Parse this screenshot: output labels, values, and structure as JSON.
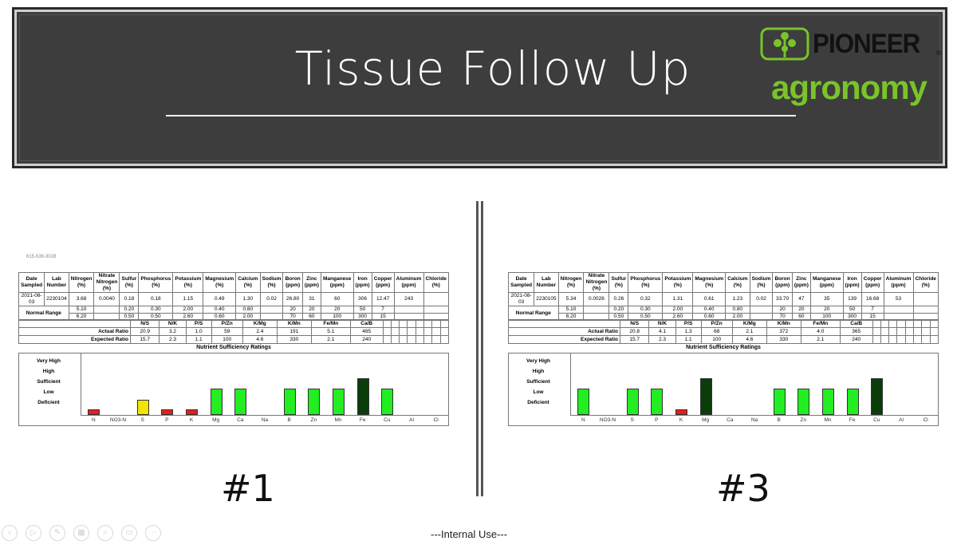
{
  "slide": {
    "title": "Tissue Follow Up",
    "footer": "---Internal Use---",
    "logo": {
      "brand": "PIONEER",
      "brand_mark": "®",
      "sub": "agronomy",
      "sub_color": "#79c42a"
    },
    "toolbar": [
      "prev-icon",
      "play-icon",
      "pen-icon",
      "slides-icon",
      "zoom-icon",
      "subtitles-icon",
      "more-icon"
    ]
  },
  "columns": [
    "Date Sampled",
    "Lab Number",
    "Nitrogen (%)",
    "Nitrate Nitrogen (%)",
    "Sulfur (%)",
    "Phosphorus (%)",
    "Potassium (%)",
    "Magnesium (%)",
    "Calcium (%)",
    "Sodium (%)",
    "Boron (ppm)",
    "Zinc (ppm)",
    "Manganese (ppm)",
    "Iron (ppm)",
    "Copper (ppm)",
    "Aluminum (ppm)",
    "Chloride (%)"
  ],
  "normal_range_label": "Normal Range",
  "normal_low": [
    "",
    "",
    "5.10",
    "",
    "0.20",
    "0.30",
    "2.00",
    "0.40",
    "0.80",
    "",
    "20",
    "20",
    "20",
    "50",
    "7",
    "",
    ""
  ],
  "normal_high": [
    "",
    "",
    "6.20",
    "",
    "0.50",
    "0.50",
    "2.60",
    "0.60",
    "2.00",
    "",
    "70",
    "60",
    "100",
    "300",
    "15",
    "",
    ""
  ],
  "ratio_headers": [
    "",
    "N/S",
    "N/K",
    "P/S",
    "P/Zn",
    "K/Mg",
    "K/Mn",
    "Fe/Mn",
    "Ca/B"
  ],
  "ratio_row_labels": [
    "Actual Ratio",
    "Expected Ratio"
  ],
  "expected_ratio": [
    "15.7",
    "2.3",
    "1.1",
    "100",
    "4.6",
    "330",
    "2.1",
    "240"
  ],
  "nsr_title": "Nutrient Sufficiency Ratings",
  "nsr_levels": [
    "Very High",
    "High",
    "Sufficient",
    "Low",
    "Deficient"
  ],
  "nsr_categories": [
    "N",
    "NO3-N",
    "S",
    "P",
    "K",
    "Mg",
    "Ca",
    "Na",
    "B",
    "Zn",
    "Mn",
    "Fe",
    "Cu",
    "Al",
    "Cl"
  ],
  "rating_colors": {
    "Deficient": "#e02020",
    "Low": "#f5e400",
    "Sufficient": "#22ee22",
    "High": "#22ee22",
    "Very High": "#0b3d0b"
  },
  "panels": [
    {
      "caption": "#1",
      "phone": "615-536-3028",
      "sample": [
        "2021-08-03",
        "2230104",
        "3.68",
        "0.0040",
        "0.18",
        "0.18",
        "1.15",
        "0.49",
        "1.30",
        "0.02",
        "26.80",
        "31",
        "60",
        "306",
        "12.47",
        "243",
        ""
      ],
      "actual_ratio": [
        "20.9",
        "3.2",
        "1.0",
        "59",
        "2.4",
        "191",
        "5.1",
        "485"
      ],
      "chart_data": {
        "type": "bar",
        "title": "Nutrient Sufficiency Ratings",
        "categories": [
          "N",
          "NO3-N",
          "S",
          "P",
          "K",
          "Mg",
          "Ca",
          "Na",
          "B",
          "Zn",
          "Mn",
          "Fe",
          "Cu",
          "Al",
          "Cl"
        ],
        "y_levels": [
          "Deficient",
          "Low",
          "Sufficient",
          "High",
          "Very High"
        ],
        "ratings": [
          "Deficient",
          null,
          "Low",
          "Deficient",
          "Deficient",
          "Sufficient",
          "Sufficient",
          null,
          "Sufficient",
          "Sufficient",
          "Sufficient",
          "Very High",
          "Sufficient",
          null,
          null
        ]
      }
    },
    {
      "caption": "#3",
      "phone": "",
      "sample": [
        "2021-08-03",
        "2230105",
        "5.34",
        "0.0026",
        "0.26",
        "0.32",
        "1.31",
        "0.61",
        "1.23",
        "0.02",
        "33.70",
        "47",
        "35",
        "139",
        "16.68",
        "53",
        ""
      ],
      "actual_ratio": [
        "20.8",
        "4.1",
        "1.3",
        "68",
        "2.1",
        "372",
        "4.0",
        "365"
      ],
      "chart_data": {
        "type": "bar",
        "title": "Nutrient Sufficiency Ratings",
        "categories": [
          "N",
          "NO3-N",
          "S",
          "P",
          "K",
          "Mg",
          "Ca",
          "Na",
          "B",
          "Zn",
          "Mn",
          "Fe",
          "Cu",
          "Al",
          "Cl"
        ],
        "y_levels": [
          "Deficient",
          "Low",
          "Sufficient",
          "High",
          "Very High"
        ],
        "ratings": [
          "Sufficient",
          null,
          "Sufficient",
          "Sufficient",
          "Deficient",
          "Very High",
          null,
          null,
          "Sufficient",
          "Sufficient",
          "Sufficient",
          "Sufficient",
          "Very High",
          null,
          null
        ]
      }
    }
  ]
}
